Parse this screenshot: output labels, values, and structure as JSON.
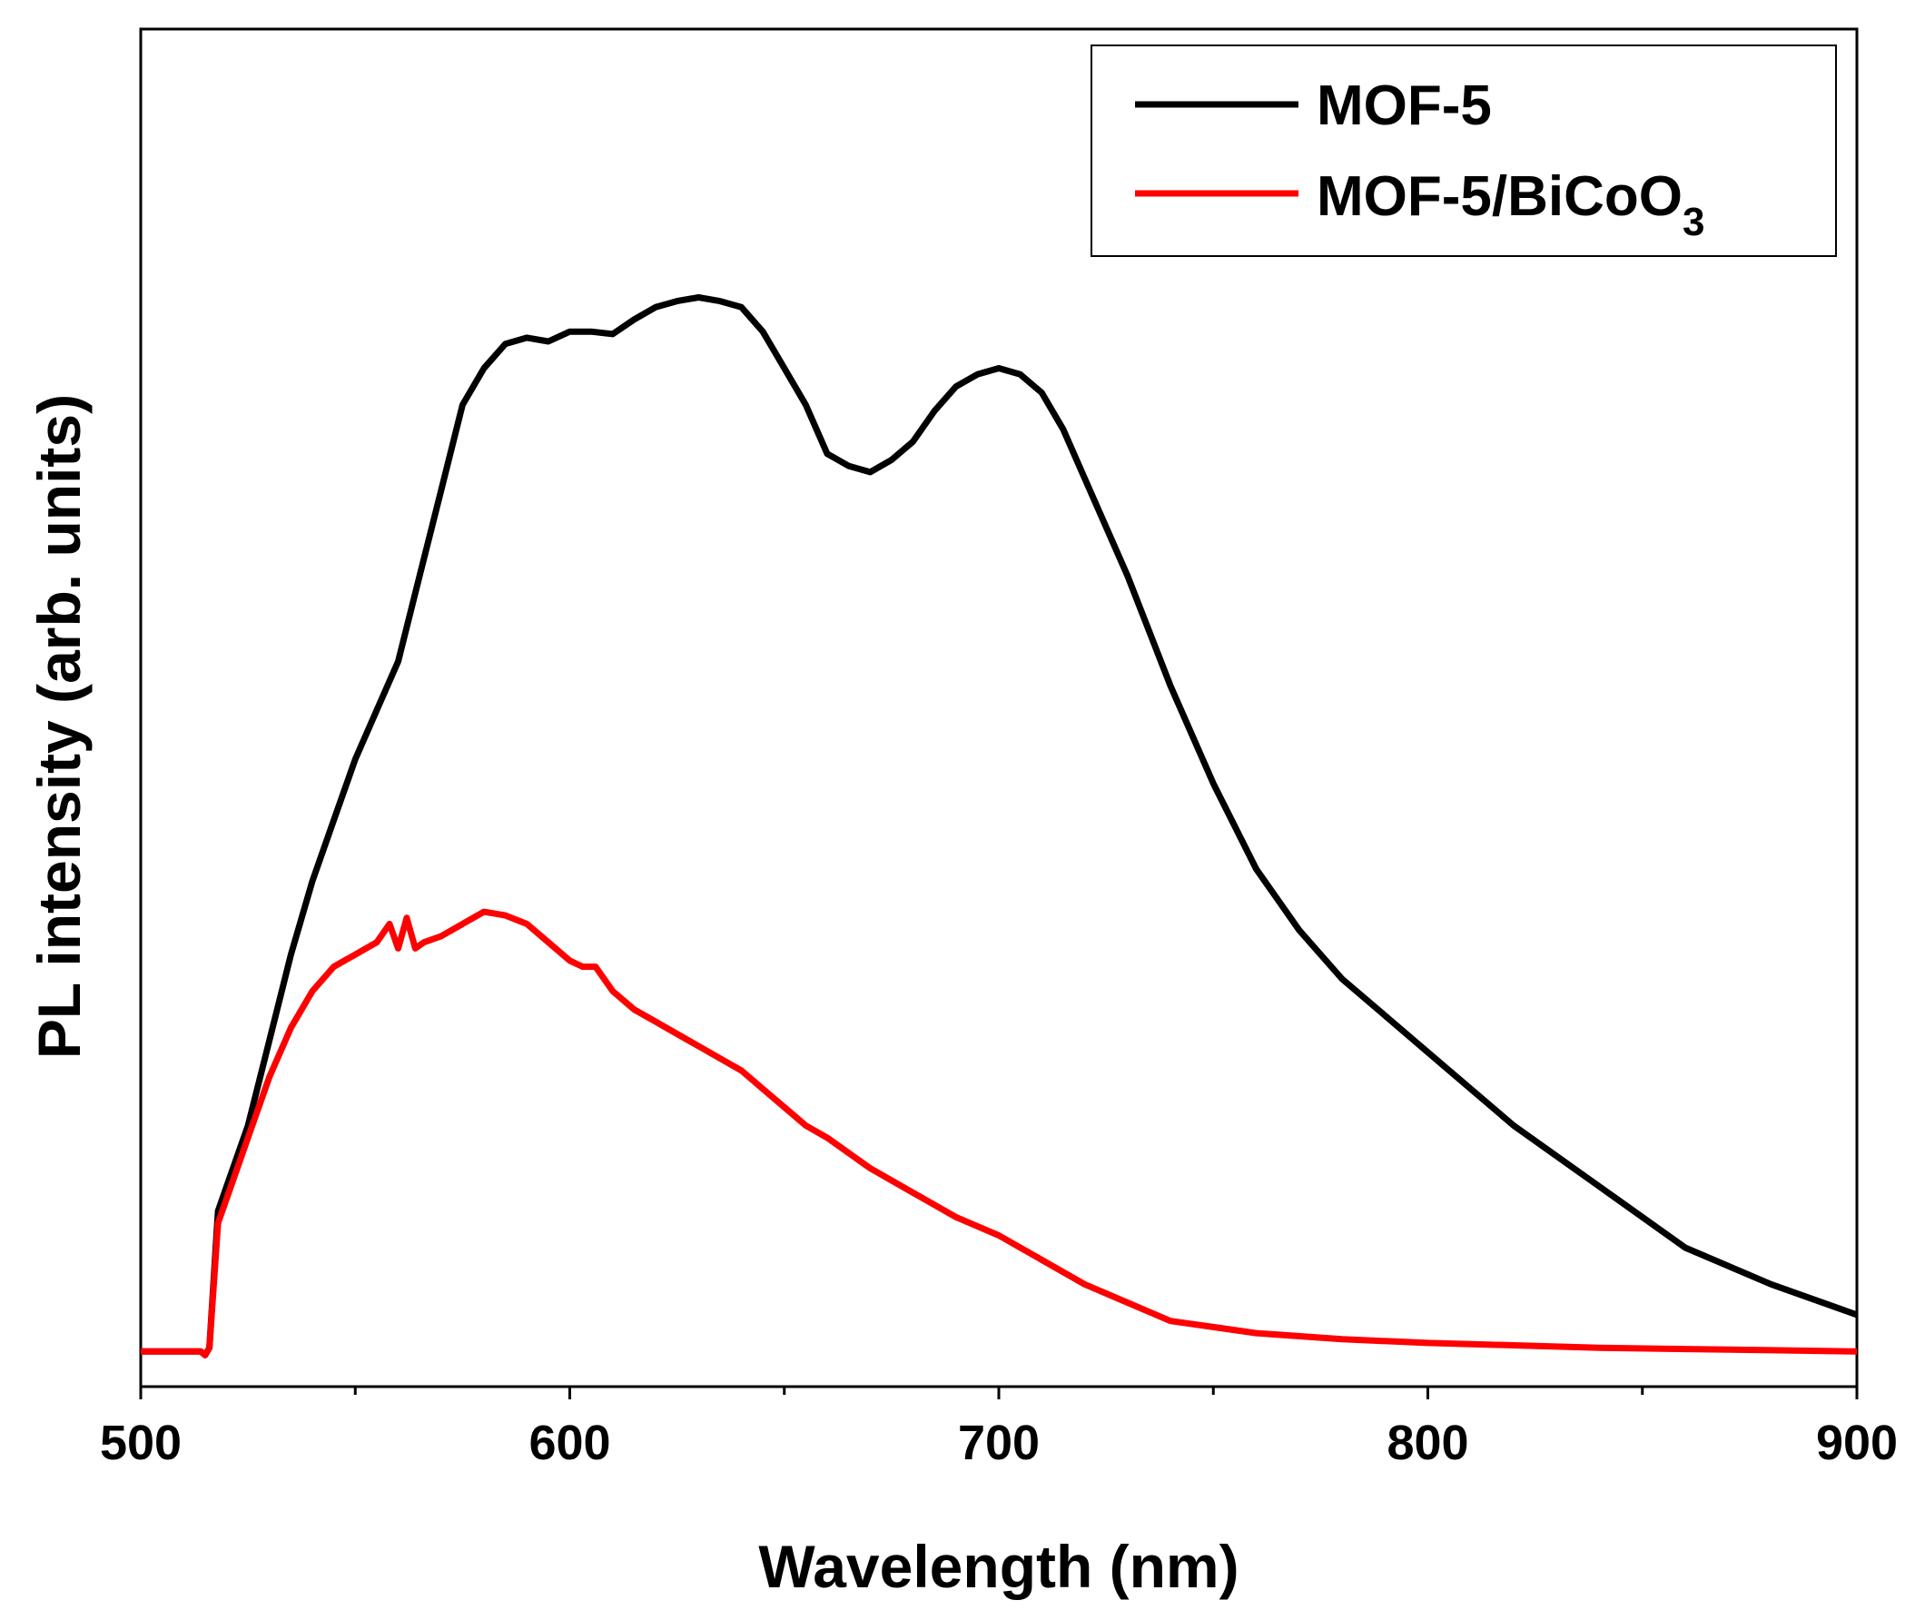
{
  "chart_data": {
    "type": "line",
    "title": "",
    "xlabel": "Wavelength (nm)",
    "ylabel": "PL intensity (arb. units)",
    "xlim": [
      500,
      900
    ],
    "ylim": [
      0,
      100
    ],
    "x_ticks": [
      "500",
      "600",
      "700",
      "800",
      "900"
    ],
    "x_ticks_values": [
      500,
      600,
      700,
      800,
      900
    ],
    "y_ticks": [],
    "grid": false,
    "legend_position": "top-right",
    "series": [
      {
        "name": "MOF-5",
        "color": "#000000",
        "x": [
          500,
          514,
          515,
          516,
          518,
          520,
          525,
          530,
          535,
          540,
          545,
          550,
          555,
          560,
          565,
          570,
          575,
          580,
          585,
          590,
          595,
          600,
          605,
          610,
          615,
          620,
          625,
          630,
          635,
          640,
          645,
          650,
          655,
          660,
          665,
          670,
          675,
          680,
          685,
          690,
          695,
          700,
          705,
          710,
          715,
          720,
          730,
          740,
          750,
          760,
          770,
          780,
          790,
          800,
          820,
          840,
          860,
          880,
          900
        ],
        "y": [
          0.5,
          0.5,
          0.2,
          0.8,
          12.0,
          14.0,
          19.0,
          26.0,
          33.0,
          39.0,
          44.0,
          49.0,
          53.0,
          57.0,
          64.0,
          71.0,
          78.0,
          81.0,
          83.0,
          83.5,
          83.2,
          84.0,
          84.0,
          83.8,
          85.0,
          86.0,
          86.5,
          86.8,
          86.5,
          86.0,
          84.0,
          81.0,
          78.0,
          74.0,
          73.0,
          72.5,
          73.5,
          75.0,
          77.5,
          79.5,
          80.5,
          81.0,
          80.5,
          79.0,
          76.0,
          72.0,
          64.0,
          55.0,
          47.0,
          40.0,
          35.0,
          31.0,
          28.0,
          25.0,
          19.0,
          14.0,
          9.0,
          6.0,
          3.5
        ]
      },
      {
        "name": "MOF-5/BiCoO3",
        "color": "#ff0000",
        "x": [
          500,
          514,
          515,
          516,
          518,
          520,
          525,
          530,
          535,
          540,
          545,
          550,
          555,
          558,
          560,
          562,
          564,
          566,
          570,
          575,
          580,
          585,
          590,
          595,
          600,
          603,
          606,
          610,
          615,
          620,
          625,
          630,
          635,
          640,
          645,
          650,
          655,
          660,
          670,
          680,
          690,
          700,
          710,
          720,
          730,
          740,
          750,
          760,
          780,
          800,
          820,
          840,
          860,
          880,
          900
        ],
        "y": [
          0.5,
          0.5,
          0.2,
          0.8,
          11.0,
          13.0,
          18.0,
          23.0,
          27.0,
          30.0,
          32.0,
          33.0,
          34.0,
          35.5,
          33.5,
          36.0,
          33.5,
          34.0,
          34.5,
          35.5,
          36.5,
          36.2,
          35.5,
          34.0,
          32.5,
          32.0,
          32.0,
          30.0,
          28.5,
          27.5,
          26.5,
          25.5,
          24.5,
          23.5,
          22.0,
          20.5,
          19.0,
          18.0,
          15.5,
          13.5,
          11.5,
          10.0,
          8.0,
          6.0,
          4.5,
          3.0,
          2.5,
          2.0,
          1.5,
          1.2,
          1.0,
          0.8,
          0.7,
          0.6,
          0.5
        ]
      }
    ]
  },
  "legend": {
    "items": [
      {
        "label": "MOF-5"
      },
      {
        "label_main": "MOF-5/BiCoO",
        "label_sub": "3"
      }
    ]
  }
}
